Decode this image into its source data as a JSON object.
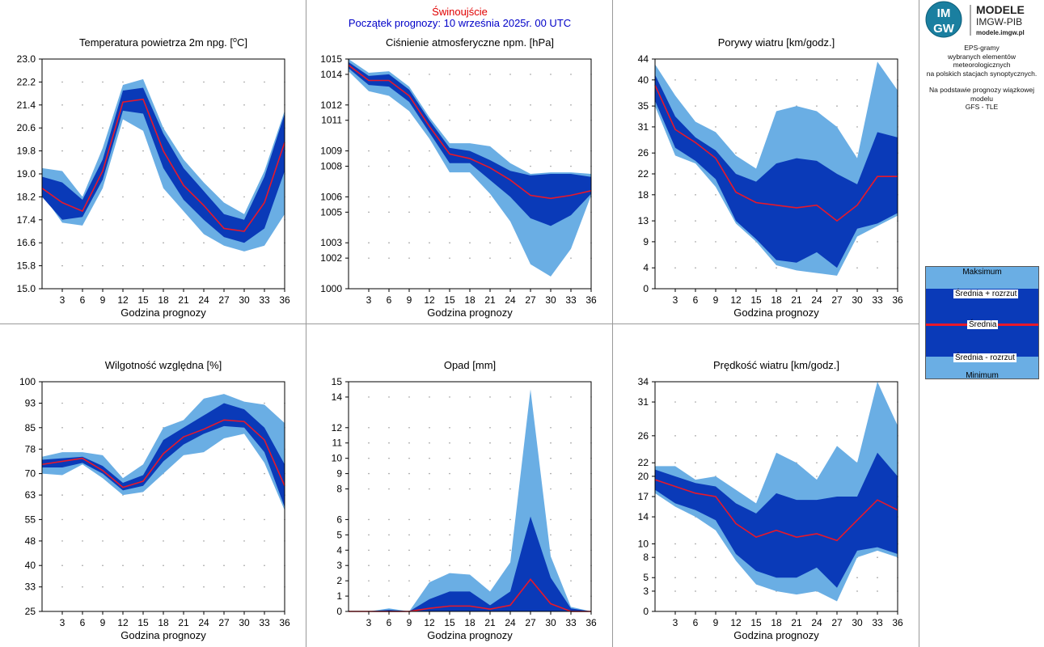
{
  "header": {
    "station": "Świnoujście",
    "forecast_start": "Początek prognozy: 10 września 2025r. 00 UTC"
  },
  "brand": {
    "logo_text_top": "IM",
    "logo_text_bottom": "GW",
    "name_line1": "MODELE",
    "name_line2": "IMGW-PIB",
    "url": "modele.imgw.pl"
  },
  "description": {
    "line1": "EPS-gramy",
    "line2": "wybranych elementów meteorologicznych",
    "line3": "na polskich stacjach  synoptycznych.",
    "line4": "Na podstawie prognozy wiązkowej modelu",
    "line5": "GFS - TLE"
  },
  "legend": {
    "max": "Maksimum",
    "mean_plus": "Średnia + rozrzut",
    "mean": "Średnia",
    "mean_minus": "Średnia - rozrzut",
    "min": "Minimum"
  },
  "colors": {
    "extreme_band": "#6aaee4",
    "spread_band": "#0a3ab8",
    "mean_line": "#e8182a"
  },
  "chart_data": [
    {
      "type": "area",
      "title": "Temperatura powietrza 2m npg. [",
      "title_sup": "o",
      "title_end": "C]",
      "xlabel": "Godzina prognozy",
      "x": [
        0,
        3,
        6,
        9,
        12,
        15,
        18,
        21,
        24,
        27,
        30,
        33,
        36
      ],
      "xticks": [
        3,
        6,
        9,
        12,
        15,
        18,
        21,
        24,
        27,
        30,
        33,
        36
      ],
      "ylim": [
        15.0,
        23.0
      ],
      "yticks": [
        "15.0",
        "15.8",
        "16.6",
        "17.4",
        "18.2",
        "19.0",
        "19.8",
        "20.6",
        "21.4",
        "22.2",
        "23.0"
      ],
      "min": [
        18.3,
        17.3,
        17.2,
        18.5,
        20.9,
        20.5,
        18.5,
        17.7,
        16.9,
        16.5,
        16.3,
        16.5,
        17.6
      ],
      "mean_minus": [
        18.2,
        17.4,
        17.5,
        18.8,
        21.2,
        21.1,
        19.2,
        18.1,
        17.4,
        16.8,
        16.6,
        17.1,
        19.1
      ],
      "mean": [
        18.5,
        18.0,
        17.7,
        19.1,
        21.5,
        21.6,
        19.8,
        18.6,
        17.9,
        17.1,
        17.0,
        18.0,
        20.1
      ],
      "mean_plus": [
        18.9,
        18.7,
        18.1,
        19.5,
        21.9,
        22.0,
        20.4,
        19.2,
        18.4,
        17.6,
        17.4,
        18.9,
        21.1
      ],
      "max": [
        19.2,
        19.1,
        18.2,
        19.9,
        22.1,
        22.3,
        20.6,
        19.5,
        18.7,
        18.0,
        17.6,
        19.1,
        21.2
      ]
    },
    {
      "type": "area",
      "title": "Ciśnienie atmosferyczne npm. [hPa]",
      "xlabel": "Godzina prognozy",
      "x": [
        0,
        3,
        6,
        9,
        12,
        15,
        18,
        21,
        24,
        27,
        30,
        33,
        36
      ],
      "xticks": [
        3,
        6,
        9,
        12,
        15,
        18,
        21,
        24,
        27,
        30,
        33,
        36
      ],
      "ylim": [
        1000,
        1015
      ],
      "yticks": [
        "1000",
        "1002",
        "1003",
        "1005",
        "1006",
        "1008",
        "1009",
        "1011",
        "1012",
        "1014",
        "1015"
      ],
      "min": [
        1014.2,
        1012.9,
        1012.6,
        1011.6,
        1009.8,
        1007.6,
        1007.6,
        1006.2,
        1004.4,
        1001.6,
        1000.8,
        1002.6,
        1006.1
      ],
      "mean_minus": [
        1014.4,
        1013.3,
        1013.2,
        1012.2,
        1010.2,
        1008.2,
        1008.2,
        1007.1,
        1006.0,
        1004.6,
        1004.1,
        1004.8,
        1006.2
      ],
      "mean": [
        1014.6,
        1013.6,
        1013.6,
        1012.6,
        1010.6,
        1008.8,
        1008.5,
        1007.9,
        1007.1,
        1006.1,
        1005.9,
        1006.1,
        1006.4
      ],
      "mean_plus": [
        1014.8,
        1013.9,
        1014.0,
        1013.0,
        1011.0,
        1009.2,
        1009.0,
        1008.4,
        1007.7,
        1007.4,
        1007.5,
        1007.5,
        1007.3
      ],
      "max": [
        1015.0,
        1014.1,
        1014.2,
        1013.2,
        1011.2,
        1009.5,
        1009.5,
        1009.3,
        1008.2,
        1007.5,
        1007.6,
        1007.6,
        1007.5
      ]
    },
    {
      "type": "area",
      "title": "Porywy wiatru [km/godz.]",
      "xlabel": "Godzina prognozy",
      "x": [
        0,
        3,
        6,
        9,
        12,
        15,
        18,
        21,
        24,
        27,
        30,
        33,
        36
      ],
      "xticks": [
        3,
        6,
        9,
        12,
        15,
        18,
        21,
        24,
        27,
        30,
        33,
        36
      ],
      "ylim": [
        0,
        44
      ],
      "yticks": [
        "0",
        "4",
        "9",
        "13",
        "18",
        "22",
        "26",
        "31",
        "35",
        "40",
        "44"
      ],
      "min": [
        35,
        25.5,
        24,
        19.5,
        12.5,
        9,
        4.5,
        3.5,
        3,
        2.5,
        10,
        12,
        14
      ],
      "mean_minus": [
        36,
        27,
        24.5,
        21,
        13,
        9.5,
        5.5,
        5,
        7,
        4,
        11.5,
        12.5,
        14.5
      ],
      "mean": [
        39,
        30.5,
        28,
        25,
        18.5,
        16.5,
        16,
        15.5,
        16,
        13,
        16,
        21.5,
        21.5
      ],
      "mean_plus": [
        41,
        33,
        29,
        26.5,
        22,
        20.5,
        24,
        25,
        24.5,
        22,
        20,
        30,
        29
      ],
      "max": [
        43,
        37,
        32,
        30,
        25.5,
        23,
        34,
        35,
        34,
        31,
        25,
        43.5,
        38
      ]
    },
    {
      "type": "area",
      "title": "Wilgotność względna [%]",
      "xlabel": "Godzina prognozy",
      "x": [
        0,
        3,
        6,
        9,
        12,
        15,
        18,
        21,
        24,
        27,
        30,
        33,
        36
      ],
      "xticks": [
        3,
        6,
        9,
        12,
        15,
        18,
        21,
        24,
        27,
        30,
        33,
        36
      ],
      "ylim": [
        25,
        100
      ],
      "yticks": [
        "25",
        "33",
        "40",
        "48",
        "55",
        "63",
        "70",
        "78",
        "85",
        "93",
        "100"
      ],
      "min": [
        70,
        69.5,
        73,
        68.5,
        63,
        64,
        70,
        76,
        77,
        81.5,
        83,
        73.5,
        58
      ],
      "mean_minus": [
        72,
        72,
        73.5,
        70,
        64.5,
        66,
        74,
        79.5,
        83,
        85.5,
        85,
        77,
        59
      ],
      "mean": [
        73,
        74,
        75,
        71,
        65.5,
        67.5,
        76.5,
        82,
        84.5,
        87.5,
        87,
        81,
        66
      ],
      "mean_plus": [
        74.5,
        75,
        75.5,
        72.5,
        67,
        69.5,
        81,
        85,
        89,
        93,
        91,
        85,
        73
      ],
      "max": [
        75.5,
        77,
        77,
        76,
        68.5,
        73,
        85,
        87.5,
        94.5,
        96,
        93.5,
        92.5,
        86.5
      ]
    },
    {
      "type": "area",
      "title": "Opad [mm]",
      "xlabel": "Godzina prognozy",
      "x": [
        0,
        3,
        6,
        9,
        12,
        15,
        18,
        21,
        24,
        27,
        30,
        33,
        36
      ],
      "xticks": [
        3,
        6,
        9,
        12,
        15,
        18,
        21,
        24,
        27,
        30,
        33,
        36
      ],
      "ylim": [
        0,
        15
      ],
      "yticks": [
        "0",
        "1",
        "2",
        "3",
        "4",
        "5",
        "6",
        "8",
        "9",
        "10",
        "11",
        "12",
        "14",
        "15"
      ],
      "min": [
        0,
        0,
        0,
        0,
        0,
        0,
        0,
        0,
        0,
        0,
        0,
        0,
        0
      ],
      "mean_minus": [
        0,
        0,
        0,
        0,
        0,
        0,
        0,
        0,
        0,
        0,
        0,
        0,
        0
      ],
      "mean": [
        0,
        0,
        0,
        0,
        0.2,
        0.35,
        0.35,
        0.15,
        0.4,
        2.1,
        0.5,
        0,
        0
      ],
      "mean_plus": [
        0,
        0,
        0.1,
        0,
        0.8,
        1.3,
        1.3,
        0.4,
        1.3,
        6.2,
        2.2,
        0.2,
        0
      ],
      "max": [
        0,
        0,
        0.2,
        0,
        1.9,
        2.5,
        2.4,
        1.3,
        3.2,
        14.5,
        3.6,
        0.3,
        0
      ]
    },
    {
      "type": "area",
      "title": "Prędkość wiatru [km/godz.]",
      "xlabel": "Godzina prognozy",
      "x": [
        0,
        3,
        6,
        9,
        12,
        15,
        18,
        21,
        24,
        27,
        30,
        33,
        36
      ],
      "xticks": [
        3,
        6,
        9,
        12,
        15,
        18,
        21,
        24,
        27,
        30,
        33,
        36
      ],
      "ylim": [
        0,
        34
      ],
      "yticks": [
        "0",
        "3",
        "5",
        "8",
        "10",
        "14",
        "17",
        "20",
        "22",
        "26",
        "31",
        "34"
      ],
      "min": [
        17.5,
        15.5,
        14,
        12,
        7.5,
        4,
        3,
        2.5,
        3,
        1.5,
        8,
        9,
        8
      ],
      "mean_minus": [
        18,
        16,
        15,
        13.5,
        8.5,
        6,
        5,
        5,
        6.5,
        3.5,
        9,
        9.5,
        8.5
      ],
      "mean": [
        19.5,
        18.5,
        17.5,
        17,
        13,
        11,
        12,
        11,
        11.5,
        10.5,
        13.5,
        16.5,
        15
      ],
      "mean_plus": [
        21,
        20,
        19,
        18.5,
        16,
        14.5,
        17.5,
        16.5,
        16.5,
        17,
        17,
        23.5,
        20
      ],
      "max": [
        21.5,
        21.5,
        19.5,
        20,
        18,
        16,
        23.5,
        22,
        19.5,
        24.5,
        22,
        34,
        27.5
      ]
    }
  ]
}
